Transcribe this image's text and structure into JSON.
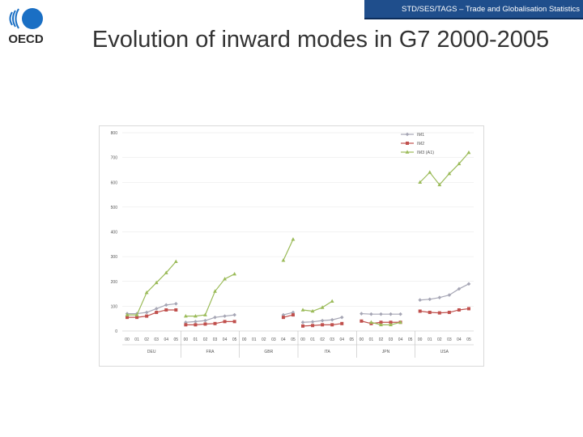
{
  "header": {
    "text": "STD/SES/TAGS – Trade and Globalisation Statistics"
  },
  "logo": {
    "text": "OECD"
  },
  "title": "Evolution of inward modes in G7 2000-2005",
  "colors": {
    "header_bg": "#1f4e8c",
    "logo_blue": "#1a6fc4",
    "im1": "#a6a6b5",
    "im2": "#c0504d",
    "im3": "#9bbb59"
  },
  "chart_data": {
    "type": "line",
    "title": "",
    "xlabel": "",
    "ylabel": "",
    "ylim": [
      0,
      800
    ],
    "yticks": [
      0,
      100,
      200,
      300,
      400,
      500,
      600,
      700,
      800
    ],
    "ytick_labels": [
      "0",
      "100",
      "200",
      "300",
      "400",
      "500",
      "600",
      "700",
      "800"
    ],
    "grid": true,
    "legend": "top-right",
    "groups": [
      {
        "name": "DEU",
        "years": [
          "00",
          "01",
          "02",
          "03",
          "04",
          "05"
        ]
      },
      {
        "name": "FRA",
        "years": [
          "00",
          "01",
          "02",
          "03",
          "04",
          "05"
        ]
      },
      {
        "name": "GBR",
        "years": [
          "00",
          "01",
          "02",
          "03",
          "04",
          "05"
        ]
      },
      {
        "name": "ITA",
        "years": [
          "00",
          "01",
          "02",
          "03",
          "04",
          "05"
        ]
      },
      {
        "name": "JPN",
        "years": [
          "00",
          "01",
          "02",
          "03",
          "04",
          "05"
        ]
      },
      {
        "name": "USA",
        "years": [
          "00",
          "01",
          "02",
          "03",
          "04",
          "05"
        ]
      }
    ],
    "series": [
      {
        "name": "IM1",
        "color": "#a6a6b5",
        "marker": "diamond",
        "values": [
          [
            70,
            70,
            75,
            90,
            105,
            110
          ],
          [
            35,
            38,
            42,
            55,
            60,
            65
          ],
          [
            null,
            null,
            null,
            null,
            65,
            75
          ],
          [
            35,
            37,
            42,
            45,
            55,
            null
          ],
          [
            70,
            68,
            68,
            68,
            68,
            null
          ],
          [
            125,
            128,
            135,
            145,
            170,
            190
          ]
        ]
      },
      {
        "name": "IM2",
        "color": "#c0504d",
        "marker": "square",
        "values": [
          [
            55,
            55,
            60,
            75,
            85,
            85
          ],
          [
            25,
            25,
            28,
            30,
            38,
            38
          ],
          [
            null,
            null,
            null,
            null,
            55,
            65
          ],
          [
            20,
            22,
            25,
            25,
            30,
            null
          ],
          [
            40,
            30,
            35,
            35,
            35,
            null
          ],
          [
            80,
            75,
            73,
            75,
            85,
            90
          ]
        ]
      },
      {
        "name": "IM3 (A1)",
        "color": "#9bbb59",
        "marker": "triangle",
        "values": [
          [
            65,
            65,
            155,
            195,
            235,
            280
          ],
          [
            60,
            60,
            65,
            160,
            210,
            230
          ],
          [
            null,
            null,
            null,
            null,
            285,
            370
          ],
          [
            85,
            80,
            95,
            120,
            null,
            null
          ],
          [
            null,
            35,
            25,
            25,
            35,
            null
          ],
          [
            600,
            640,
            590,
            635,
            675,
            720
          ]
        ]
      }
    ]
  }
}
